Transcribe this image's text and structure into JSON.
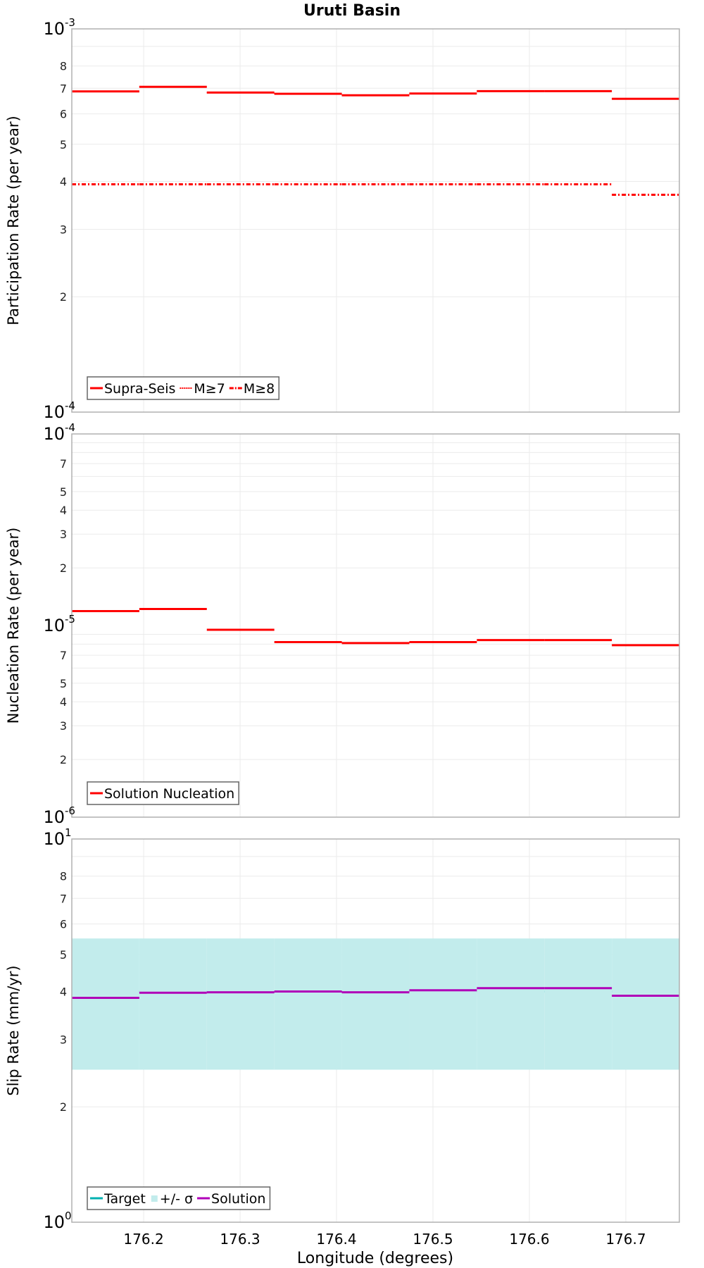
{
  "title": "Uruti Basin",
  "colors": {
    "red": "#ff0000",
    "target": "#00b0b0",
    "band": "#c2ecec",
    "solution": "#b000b8",
    "grid": "#ebebeb",
    "frame": "#b0b0b0"
  },
  "x_axis": {
    "label": "Longitude (degrees)",
    "range": [
      176.1255,
      176.7555
    ],
    "ticks": [
      "176.2",
      "176.3",
      "176.4",
      "176.5",
      "176.6",
      "176.7"
    ]
  },
  "chart_data": [
    {
      "type": "line",
      "step": true,
      "title": "Uruti Basin",
      "xlabel": "Longitude (degrees)",
      "ylabel": "Participation Rate (per year)",
      "yscale": "log",
      "ylim": [
        0.0001,
        0.001
      ],
      "y_tick_labels": [
        "10^-4",
        "2",
        "3",
        "4",
        "5",
        "6",
        "7",
        "8",
        "10^-3"
      ],
      "x_edges": [
        176.1255,
        176.1955,
        176.2655,
        176.3355,
        176.4055,
        176.4755,
        176.5455,
        176.6155,
        176.6855,
        176.7555
      ],
      "legend": [
        "Supra-Seis",
        "M≥7",
        "M≥8"
      ],
      "legend_position": "lower left",
      "series": [
        {
          "name": "Supra-Seis",
          "style": "solid",
          "color": "#ff0000",
          "values": [
            0.000687,
            0.000706,
            0.000682,
            0.000677,
            0.000671,
            0.000678,
            0.000688,
            0.000688,
            0.000657
          ]
        },
        {
          "name": "M≥7",
          "style": "dotted",
          "color": "#ff0000",
          "values": [
            0.000687,
            0.000706,
            0.000682,
            0.000677,
            0.000671,
            0.000678,
            0.000688,
            0.000688,
            0.000657
          ]
        },
        {
          "name": "M≥8",
          "style": "dashdot",
          "color": "#ff0000",
          "values": [
            0.000393,
            0.000393,
            0.000393,
            0.000393,
            0.000393,
            0.000393,
            0.000393,
            0.000393,
            0.000369
          ]
        }
      ]
    },
    {
      "type": "line",
      "step": true,
      "xlabel": "Longitude (degrees)",
      "ylabel": "Nucleation Rate (per year)",
      "yscale": "log",
      "ylim": [
        1e-06,
        0.0001
      ],
      "y_tick_labels": [
        "10^-6",
        "2",
        "3",
        "4",
        "5",
        "7",
        "10^-5",
        "2",
        "3",
        "4",
        "5",
        "7",
        "10^-4"
      ],
      "x_edges": [
        176.1255,
        176.1955,
        176.2655,
        176.3355,
        176.4055,
        176.4755,
        176.5455,
        176.6155,
        176.6855,
        176.7555
      ],
      "legend": [
        "Solution Nucleation"
      ],
      "legend_position": "lower left",
      "series": [
        {
          "name": "Solution Nucleation",
          "style": "solid",
          "color": "#ff0000",
          "values": [
            1.19e-05,
            1.22e-05,
            9.5e-06,
            8.2e-06,
            8.1e-06,
            8.2e-06,
            8.4e-06,
            8.4e-06,
            7.9e-06
          ]
        }
      ]
    },
    {
      "type": "line",
      "step": true,
      "xlabel": "Longitude (degrees)",
      "ylabel": "Slip Rate (mm/yr)",
      "yscale": "log",
      "ylim": [
        1,
        10
      ],
      "y_tick_labels": [
        "10^0",
        "2",
        "3",
        "4",
        "5",
        "6",
        "7",
        "8",
        "10^1"
      ],
      "x_edges": [
        176.1255,
        176.1955,
        176.2655,
        176.3355,
        176.4055,
        176.4755,
        176.5455,
        176.6155,
        176.6855,
        176.7555
      ],
      "legend": [
        "Target",
        "+/- σ",
        "Solution"
      ],
      "legend_position": "lower left",
      "series": [
        {
          "name": "Target",
          "style": "solid",
          "color": "#00b0b0",
          "values": [
            4.0,
            4.0,
            4.0,
            4.0,
            4.0,
            4.0,
            4.0,
            4.0,
            4.0
          ]
        },
        {
          "name": "+/- σ",
          "style": "band",
          "color": "#c2ecec",
          "lower": [
            2.5,
            2.5,
            2.5,
            2.5,
            2.5,
            2.5,
            2.5,
            2.5,
            2.5
          ],
          "upper": [
            5.5,
            5.5,
            5.5,
            5.5,
            5.5,
            5.5,
            5.5,
            5.5,
            5.5
          ]
        },
        {
          "name": "Solution",
          "style": "solid",
          "color": "#b000b8",
          "values": [
            3.85,
            3.97,
            3.98,
            4.0,
            3.98,
            4.03,
            4.08,
            4.08,
            3.9
          ]
        }
      ]
    }
  ]
}
